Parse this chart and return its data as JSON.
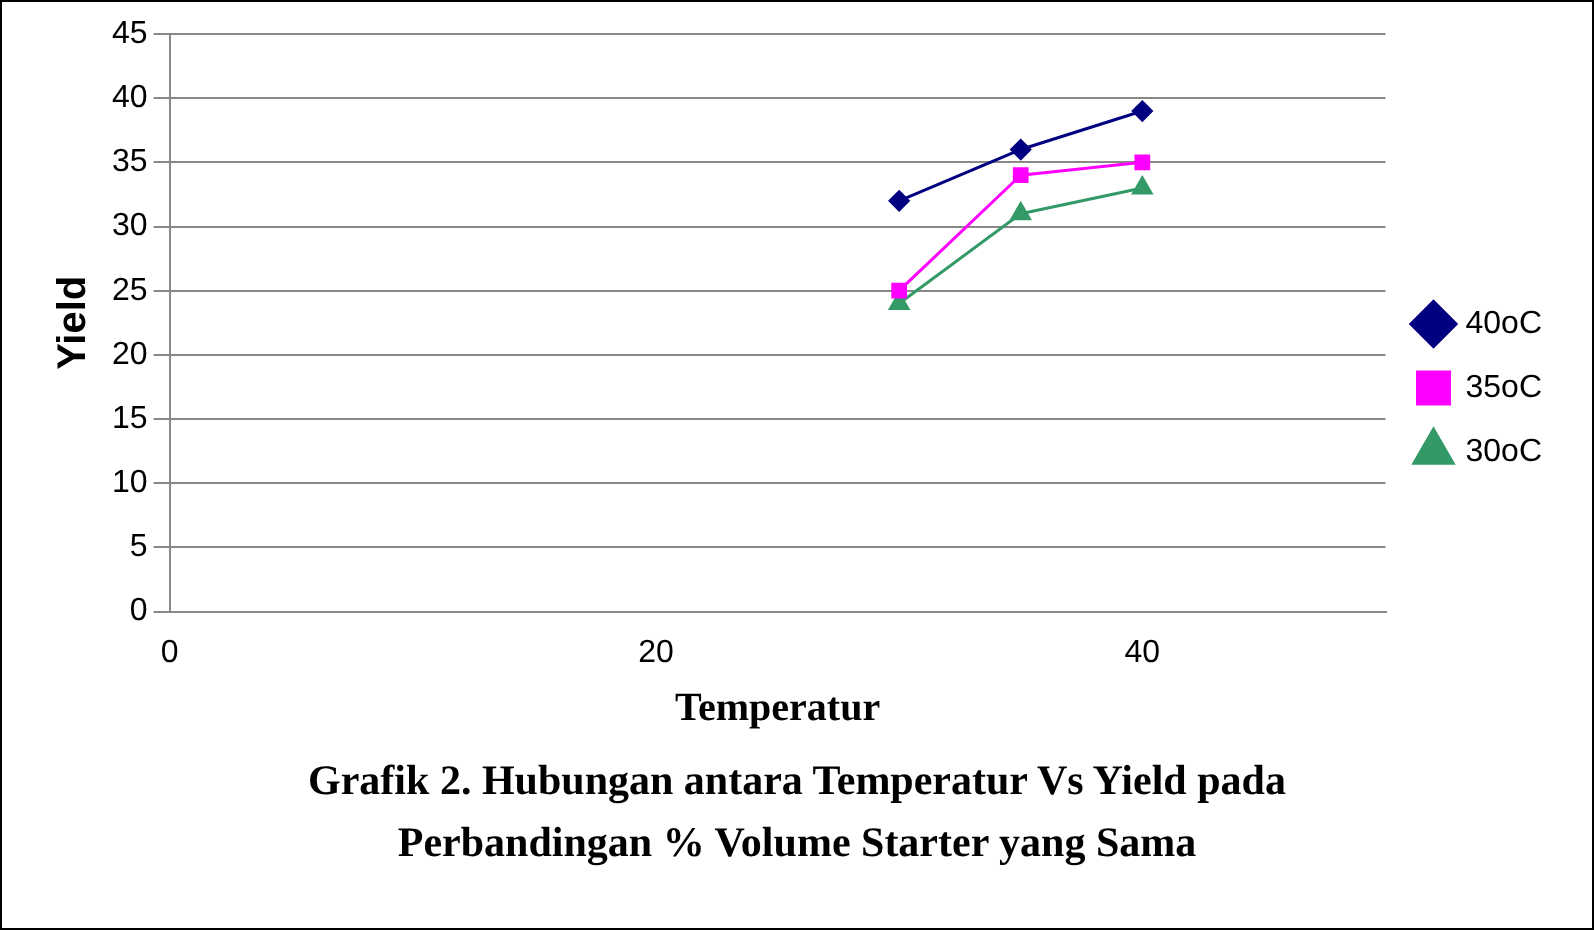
{
  "chart_data": {
    "type": "line",
    "xlabel": "Temperatur",
    "ylabel": "Yield",
    "x": [
      30,
      35,
      40
    ],
    "series": [
      {
        "name": "40oC",
        "color": "#000080",
        "marker": "diamond",
        "values": [
          32,
          36,
          39
        ]
      },
      {
        "name": "35oC",
        "color": "#ff00ff",
        "marker": "square",
        "values": [
          25,
          34,
          35
        ]
      },
      {
        "name": "30oC",
        "color": "#339966",
        "marker": "triangle",
        "values": [
          24,
          31,
          33
        ]
      }
    ],
    "xlim": [
      0,
      50
    ],
    "xticks": [
      0,
      20,
      40
    ],
    "ylim": [
      0,
      45
    ],
    "yticks": [
      0,
      5,
      10,
      15,
      20,
      25,
      30,
      35,
      40,
      45
    ],
    "grid": "y",
    "legend": "right",
    "annotations": [
      "Grafik 2. Hubungan antara Temperatur Vs Yield pada Perbandingan % Volume Starter yang Sama"
    ]
  }
}
